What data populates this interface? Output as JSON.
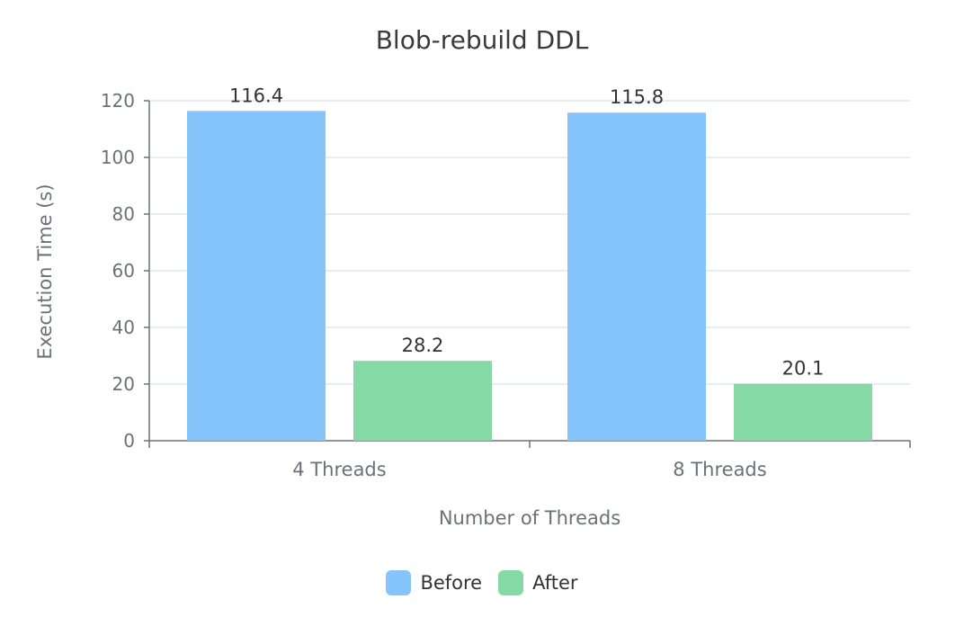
{
  "chart_data": {
    "type": "bar",
    "title": "Blob-rebuild DDL",
    "xlabel": "Number of Threads",
    "ylabel": "Execution Time (s)",
    "categories": [
      "4 Threads",
      "8 Threads"
    ],
    "series": [
      {
        "name": "Before",
        "values": [
          116.4,
          115.8
        ],
        "color": "#85c5fc"
      },
      {
        "name": "After",
        "values": [
          28.2,
          20.1
        ],
        "color": "#85d9a4"
      }
    ],
    "yticks": [
      0,
      20,
      40,
      60,
      80,
      100,
      120
    ],
    "ylim": [
      0,
      120
    ],
    "grid": true,
    "legend": "bottom-center",
    "data_labels": true
  }
}
